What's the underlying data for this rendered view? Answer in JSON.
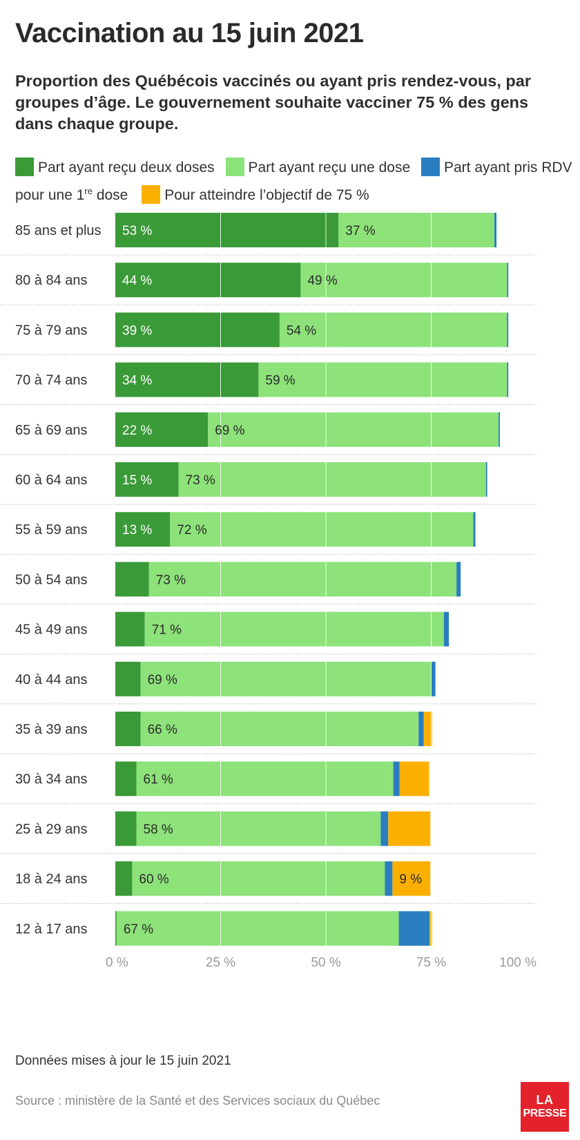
{
  "title": "Vaccination au 15 juin 2021",
  "subtitle": "Proportion des Québécois vaccinés ou ayant pris rendez-vous, par groupes d’âge. Le gouvernement souhaite vacciner 75 % des gens dans chaque groupe.",
  "legend": {
    "two_doses": "Part ayant reçu deux doses",
    "one_dose": "Part ayant reçu une dose",
    "rdv_prefix": "Part ayant pris RDV pour une 1",
    "rdv_sup": "re",
    "rdv_suffix": " dose",
    "objective": "Pour atteindre l’objectif de 75 %"
  },
  "colors": {
    "two_doses": "#3a9a38",
    "one_dose": "#8de27a",
    "rdv": "#2a7ec0",
    "objective": "#fbb000",
    "gridline": "#ffffff",
    "separator": "#bfbfbf"
  },
  "footnote": "Données mises à jour le 15 juin 2021",
  "source": "Source : ministère de la Santé et des Services sociaux du Québec",
  "logo": {
    "line1": "LA",
    "line2": "PRESSE"
  },
  "chart_data": {
    "type": "bar",
    "orientation": "horizontal",
    "stacked": true,
    "categories": [
      "85 ans et plus",
      "80 à 84 ans",
      "75 à 79 ans",
      "70 à 74 ans",
      "65 à 69 ans",
      "60 à 64 ans",
      "55 à 59 ans",
      "50 à 54 ans",
      "45 à 49 ans",
      "40 à 44 ans",
      "35 à 39 ans",
      "30 à 34 ans",
      "25 à 29 ans",
      "18 à 24 ans",
      "12 à 17 ans"
    ],
    "series": [
      {
        "name": "Part ayant reçu deux doses",
        "key": "two_doses",
        "values": [
          53,
          44,
          39,
          34,
          22,
          15,
          13,
          8,
          7,
          6,
          6,
          5,
          5,
          4,
          0.3
        ],
        "labels": [
          "53 %",
          "44 %",
          "39 %",
          "34 %",
          "22 %",
          "15 %",
          "13 %",
          "",
          "",
          "",
          "",
          "",
          "",
          "",
          ""
        ]
      },
      {
        "name": "Part ayant reçu une dose",
        "key": "one_dose",
        "values": [
          37,
          49,
          54,
          59,
          69,
          73,
          72,
          73,
          71,
          69,
          66,
          61,
          58,
          60,
          67
        ],
        "labels": [
          "37 %",
          "49 %",
          "54 %",
          "59 %",
          "69 %",
          "73 %",
          "72 %",
          "73 %",
          "71 %",
          "69 %",
          "66 %",
          "61 %",
          "58 %",
          "60 %",
          "67 %"
        ]
      },
      {
        "name": "Part ayant pris RDV pour une 1re dose",
        "key": "rdv",
        "values": [
          0.5,
          0.3,
          0.3,
          0.3,
          0.3,
          0.3,
          0.5,
          1,
          1.2,
          1,
          1.2,
          1.5,
          1.8,
          1.8,
          7.3
        ],
        "labels": [
          "",
          "",
          "",
          "",
          "",
          "",
          "",
          "",
          "",
          "",
          "",
          "",
          "",
          "",
          ""
        ]
      },
      {
        "name": "Pour atteindre l’objectif de 75 %",
        "key": "objective",
        "values": [
          0,
          0,
          0,
          0,
          0,
          0,
          0,
          0,
          0,
          0,
          2,
          7,
          10,
          9,
          0.6
        ],
        "labels": [
          "",
          "",
          "",
          "",
          "",
          "",
          "",
          "",
          "",
          "",
          "",
          "",
          "",
          "9 %",
          ""
        ]
      }
    ],
    "xlim": [
      0,
      100
    ],
    "xticks": [
      "0 %",
      "25 %",
      "50 %",
      "75 %",
      "100 %"
    ],
    "xtick_values": [
      0,
      25,
      50,
      75,
      100
    ],
    "grid": true
  }
}
